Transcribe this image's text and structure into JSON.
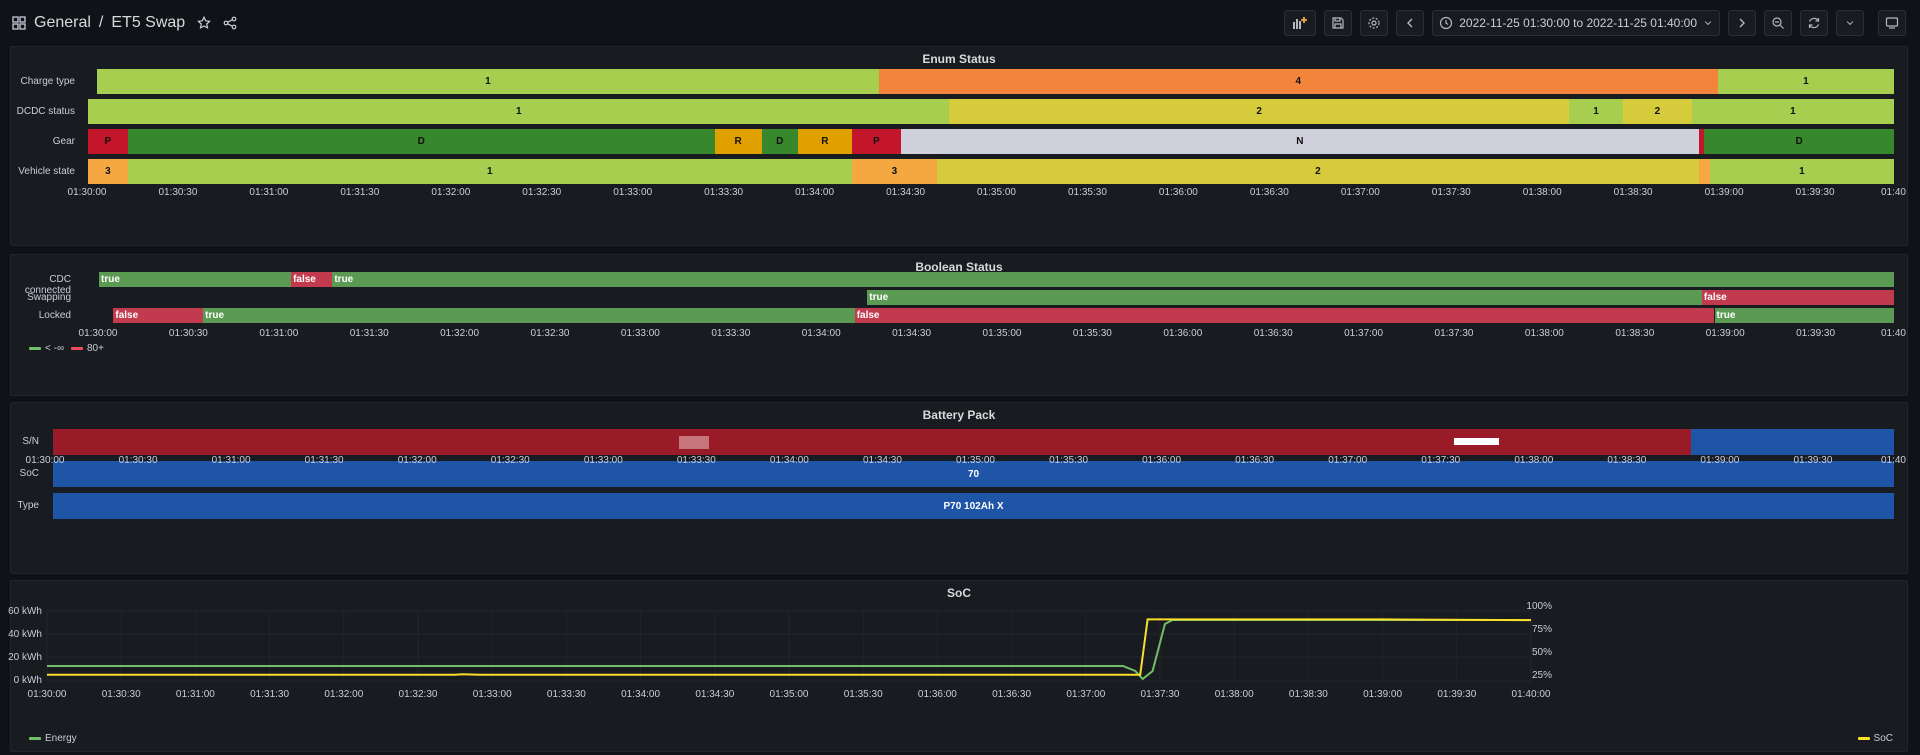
{
  "breadcrumb": {
    "root": "General",
    "separator": "/",
    "dashboard": "ET5 Swap"
  },
  "toolbar": {
    "time_range": "2022-11-25 01:30:00 to 2022-11-25 01:40:00"
  },
  "colors": {
    "green": "#73bf69",
    "dark_green": "#37872d",
    "lime": "#a8ce4f",
    "yellow": "#d6cb3a",
    "orange": "#f2843b",
    "amber": "#e0a100",
    "light_orange": "#f5a742",
    "red": "#c4162a",
    "bool_green": "#5a9a52",
    "bool_red": "#c23a4e",
    "sn_red": "#981b27",
    "blue": "#1f55a6",
    "pale": "#cfd0dc",
    "soc_yellow": "#fade2a"
  },
  "time_axis": [
    "01:30:00",
    "01:30:30",
    "01:31:00",
    "01:31:30",
    "01:32:00",
    "01:32:30",
    "01:33:00",
    "01:33:30",
    "01:34:00",
    "01:34:30",
    "01:35:00",
    "01:35:30",
    "01:36:00",
    "01:36:30",
    "01:37:00",
    "01:37:30",
    "01:38:00",
    "01:38:30",
    "01:39:00",
    "01:39:30",
    "01:40"
  ],
  "time_axis_soc": [
    "01:30:00",
    "01:30:30",
    "01:31:00",
    "01:31:30",
    "01:32:00",
    "01:32:30",
    "01:33:00",
    "01:33:30",
    "01:34:00",
    "01:34:30",
    "01:35:00",
    "01:35:30",
    "01:36:00",
    "01:36:30",
    "01:37:00",
    "01:37:30",
    "01:38:00",
    "01:38:30",
    "01:39:00",
    "01:39:30",
    "01:40:00"
  ],
  "enum_panel": {
    "title": "Enum Status",
    "rows": [
      {
        "label": "Charge type",
        "segments": [
          {
            "from": 0,
            "to": 0.435,
            "text": "1",
            "color": "#a8ce4f"
          },
          {
            "from": 0.435,
            "to": 0.902,
            "text": "4",
            "color": "#f2843b"
          },
          {
            "from": 0.902,
            "to": 1,
            "text": "1",
            "color": "#a8ce4f"
          }
        ]
      },
      {
        "label": "DCDC status",
        "segments": [
          {
            "from": 0,
            "to": 0.477,
            "text": "1",
            "color": "#a8ce4f"
          },
          {
            "from": 0.477,
            "to": 0.82,
            "text": "2",
            "color": "#d6cb3a"
          },
          {
            "from": 0.82,
            "to": 0.85,
            "text": "1",
            "color": "#a8ce4f"
          },
          {
            "from": 0.85,
            "to": 0.888,
            "text": "2",
            "color": "#d6cb3a"
          },
          {
            "from": 0.888,
            "to": 1,
            "text": "1",
            "color": "#a8ce4f"
          }
        ]
      },
      {
        "label": "Gear",
        "segments": [
          {
            "from": 0,
            "to": 0.022,
            "text": "P",
            "color": "#c4162a"
          },
          {
            "from": 0.022,
            "to": 0.347,
            "text": "D",
            "color": "#37872d"
          },
          {
            "from": 0.347,
            "to": 0.373,
            "text": "R",
            "color": "#e0a100"
          },
          {
            "from": 0.373,
            "to": 0.393,
            "text": "D",
            "color": "#37872d"
          },
          {
            "from": 0.393,
            "to": 0.423,
            "text": "R",
            "color": "#e0a100"
          },
          {
            "from": 0.423,
            "to": 0.45,
            "text": "P",
            "color": "#c4162a"
          },
          {
            "from": 0.45,
            "to": 0.892,
            "text": "N",
            "color": "#cfd0dc"
          },
          {
            "from": 0.892,
            "to": 0.895,
            "text": "",
            "color": "#c4162a"
          },
          {
            "from": 0.895,
            "to": 1,
            "text": "D",
            "color": "#37872d"
          }
        ]
      },
      {
        "label": "Vehicle state",
        "segments": [
          {
            "from": 0,
            "to": 0.022,
            "text": "3",
            "color": "#f5a742"
          },
          {
            "from": 0.022,
            "to": 0.423,
            "text": "1",
            "color": "#a8ce4f"
          },
          {
            "from": 0.423,
            "to": 0.47,
            "text": "3",
            "color": "#f5a742"
          },
          {
            "from": 0.47,
            "to": 0.892,
            "text": "2",
            "color": "#d6cb3a"
          },
          {
            "from": 0.892,
            "to": 0.898,
            "text": "",
            "color": "#f5a742"
          },
          {
            "from": 0.898,
            "to": 1,
            "text": "1",
            "color": "#a8ce4f"
          }
        ]
      }
    ]
  },
  "bool_panel": {
    "title": "Boolean Status",
    "rows": [
      {
        "label": "CDC connected",
        "segments": [
          {
            "from": 0,
            "to": 0.107,
            "text": "true",
            "color": "#5a9a52"
          },
          {
            "from": 0.107,
            "to": 0.13,
            "text": "false",
            "color": "#c23a4e"
          },
          {
            "from": 0.13,
            "to": 1,
            "text": "true",
            "color": "#5a9a52"
          }
        ]
      },
      {
        "label": "Swapping",
        "segments": [
          {
            "from": 0.428,
            "to": 0.893,
            "text": "true",
            "color": "#5a9a52"
          },
          {
            "from": 0.893,
            "to": 1,
            "text": "false",
            "color": "#c23a4e"
          }
        ]
      },
      {
        "label": "Locked",
        "segments": [
          {
            "from": 0.008,
            "to": 0.058,
            "text": "false",
            "color": "#c23a4e"
          },
          {
            "from": 0.058,
            "to": 0.421,
            "text": "true",
            "color": "#5a9a52"
          },
          {
            "from": 0.421,
            "to": 0.9,
            "text": "false",
            "color": "#c23a4e"
          },
          {
            "from": 0.9,
            "to": 1,
            "text": "true",
            "color": "#5a9a52"
          }
        ]
      }
    ],
    "legend": [
      {
        "label": "< -∞",
        "color": "#73bf69"
      },
      {
        "label": "80+",
        "color": "#f2495c"
      }
    ]
  },
  "battery_panel": {
    "title": "Battery Pack",
    "rows": [
      {
        "label": "S/N",
        "segments": [
          {
            "from": 0,
            "to": 0.89,
            "text": "",
            "color": "#981b27"
          },
          {
            "from": 0.89,
            "to": 1,
            "text": "",
            "color": "#1f55a6"
          }
        ]
      },
      {
        "label": "SoC",
        "segments": [
          {
            "from": 0,
            "to": 1,
            "text": "70",
            "color": "#1f55a6"
          }
        ]
      },
      {
        "label": "Type",
        "segments": [
          {
            "from": 0,
            "to": 1,
            "text": "P70 102Ah X",
            "color": "#1f55a6"
          }
        ]
      }
    ]
  },
  "soc_panel": {
    "title": "SoC",
    "left_axis": [
      "60 kWh",
      "40 kWh",
      "20 kWh",
      "0 kWh"
    ],
    "right_axis": [
      "100%",
      "75%",
      "50%",
      "25%"
    ],
    "legend_left": "Energy",
    "legend_right": "SoC"
  },
  "chart_data": {
    "type": "line",
    "title": "SoC",
    "x_unit": "time",
    "xlim": [
      "01:30:00",
      "01:40:00"
    ],
    "series": [
      {
        "name": "Energy",
        "axis": "left",
        "unit": "kWh",
        "color": "#73bf69",
        "points": [
          [
            "01:30:00",
            15
          ],
          [
            "01:37:15",
            15
          ],
          [
            "01:37:20",
            10
          ],
          [
            "01:37:23",
            2
          ],
          [
            "01:37:27",
            10
          ],
          [
            "01:37:32",
            57
          ],
          [
            "01:37:35",
            61
          ],
          [
            "01:40:00",
            61
          ]
        ]
      },
      {
        "name": "SoC",
        "axis": "right",
        "unit": "%",
        "color": "#fade2a",
        "points": [
          [
            "01:30:00",
            19
          ],
          [
            "01:32:45",
            19
          ],
          [
            "01:32:48",
            19.5
          ],
          [
            "01:32:55",
            19
          ],
          [
            "01:37:22",
            19
          ],
          [
            "01:37:25",
            98
          ],
          [
            "01:39:00",
            98
          ],
          [
            "01:40:00",
            97
          ]
        ]
      }
    ],
    "ylim_left": [
      0,
      70
    ],
    "ylim_right": [
      10,
      110
    ]
  }
}
